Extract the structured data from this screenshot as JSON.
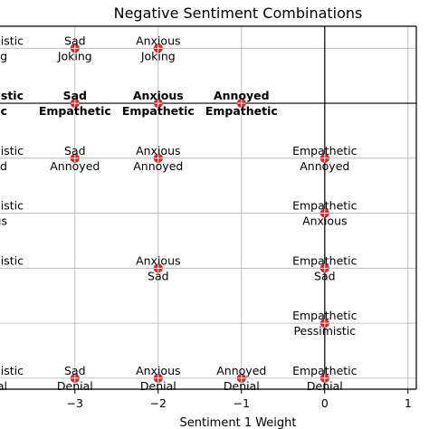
{
  "chart_data": {
    "type": "scatter",
    "title": "Negative Sentiment Combinations",
    "xlabel": "Sentiment 1 Weight",
    "ylabel": "",
    "xlim": [
      -3.9,
      1.1
    ],
    "ylim": [
      -0.2,
      6.4
    ],
    "xticks": [
      {
        "value": -3,
        "label": "−3"
      },
      {
        "value": -2,
        "label": "−2"
      },
      {
        "value": -1,
        "label": "−1"
      },
      {
        "value": 0,
        "label": "0"
      },
      {
        "value": 1,
        "label": "1"
      }
    ],
    "grid": true,
    "reference_lines": {
      "x": 0,
      "y": 5
    },
    "point_color": "#d62728",
    "points": [
      {
        "x": -3,
        "y": 6,
        "label1": "Sad",
        "label2": "Joking"
      },
      {
        "x": -2,
        "y": 6,
        "label1": "Anxious",
        "label2": "Joking"
      },
      {
        "x": -3,
        "y": 5,
        "label1": "Sad",
        "label2": "Empathetic",
        "bold": true
      },
      {
        "x": -2,
        "y": 5,
        "label1": "Anxious",
        "label2": "Empathetic",
        "bold": true
      },
      {
        "x": -1,
        "y": 5,
        "label1": "Annoyed",
        "label2": "Empathetic",
        "bold": true
      },
      {
        "x": -3,
        "y": 4,
        "label1": "Sad",
        "label2": "Annoyed"
      },
      {
        "x": -2,
        "y": 4,
        "label1": "Anxious",
        "label2": "Annoyed"
      },
      {
        "x": 0,
        "y": 4,
        "label1": "Empathetic",
        "label2": "Annoyed"
      },
      {
        "x": 0,
        "y": 3,
        "label1": "Empathetic",
        "label2": "Anxious"
      },
      {
        "x": -2,
        "y": 2,
        "label1": "Anxious",
        "label2": "Sad"
      },
      {
        "x": 0,
        "y": 2,
        "label1": "Empathetic",
        "label2": "Sad"
      },
      {
        "x": 0,
        "y": 1,
        "label1": "Empathetic",
        "label2": "Pessimistic"
      },
      {
        "x": -3,
        "y": 0,
        "label1": "Sad",
        "label2": "Denial"
      },
      {
        "x": -2,
        "y": 0,
        "label1": "Anxious",
        "label2": "Denial"
      },
      {
        "x": -1,
        "y": 0,
        "label1": "Annoyed",
        "label2": "Denial"
      },
      {
        "x": 0,
        "y": 0,
        "label1": "Empathetic",
        "label2": "Denial"
      }
    ],
    "clipped_left_labels": [
      {
        "y": 6,
        "label1": "istic",
        "label2": "g"
      },
      {
        "y": 5,
        "label1": "istic",
        "label2": "pathetic",
        "bold": true
      },
      {
        "y": 4,
        "label1": "istic",
        "label2": "yed"
      },
      {
        "y": 3,
        "label1": "istic",
        "label2": "ous"
      },
      {
        "y": 2,
        "label1": "istic",
        "label2": ""
      },
      {
        "y": 0,
        "label1": "istic",
        "label2": "ial"
      }
    ]
  }
}
